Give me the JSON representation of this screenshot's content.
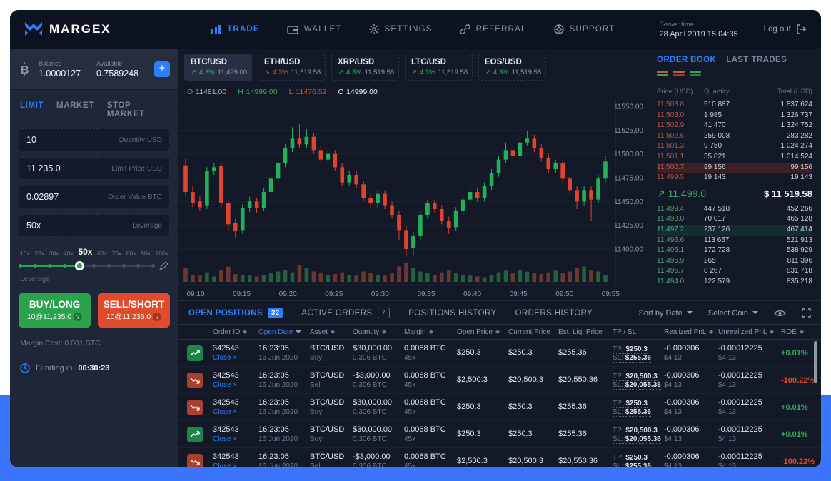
{
  "header": {
    "logo": "MARGEX",
    "nav": [
      {
        "label": "TRADE",
        "icon": "chart-bars-icon",
        "active": true
      },
      {
        "label": "WALLET",
        "icon": "wallet-icon",
        "active": false
      },
      {
        "label": "SETTINGS",
        "icon": "gear-icon",
        "active": false
      },
      {
        "label": "REFERRAL",
        "icon": "link-icon",
        "active": false
      },
      {
        "label": "SUPPORT",
        "icon": "lifebuoy-icon",
        "active": false
      }
    ],
    "server_time_label": "Server time:",
    "server_time_value": "28 April 2019 15:04:35",
    "logout_label": "Log out"
  },
  "sidebar": {
    "balance_label": "Balance",
    "balance_value": "1.0000127",
    "available_label": "Available",
    "available_value": "0.7589248",
    "order_tabs": [
      {
        "label": "LIMIT",
        "active": true
      },
      {
        "label": "MARKET",
        "active": false
      },
      {
        "label": "STOP MARKET",
        "active": false
      }
    ],
    "fields": [
      {
        "value": "10",
        "label": "Quantity USD"
      },
      {
        "value": "11 235.0",
        "label": "Limit Price USD"
      },
      {
        "value": "0.02897",
        "label": "Order Value BTC"
      },
      {
        "value": "50x",
        "label": "Leverage"
      }
    ],
    "leverage": {
      "marks": [
        "10x",
        "20x",
        "30x",
        "40x",
        "50x",
        "60x",
        "70x",
        "80x",
        "90x",
        "100x"
      ],
      "selected_index": 4,
      "label": "Leverage"
    },
    "buy": {
      "title": "BUY/LONG",
      "sub": "10@11,235.0",
      "hint": "?"
    },
    "sell": {
      "title": "SELL/SHORT",
      "sub": "10@11,235.0",
      "hint": "?"
    },
    "margin_cost": "Margin Cost: 0.001 BTC",
    "funding_label": "Funding in",
    "funding_value": "00:30:23"
  },
  "pairs": [
    {
      "name": "BTC/USD",
      "dir": "up",
      "change": "4.3%",
      "price": "11,499.00",
      "active": true
    },
    {
      "name": "ETH/USD",
      "dir": "down",
      "change": "4.3%",
      "price": "11,519.58",
      "active": false
    },
    {
      "name": "XRP/USD",
      "dir": "up",
      "change": "4.3%",
      "price": "11,519.58",
      "active": false
    },
    {
      "name": "LTC/USD",
      "dir": "up",
      "change": "4.3%",
      "price": "11,519.58",
      "active": false
    },
    {
      "name": "EOS/USD",
      "dir": "up",
      "change": "4.3%",
      "price": "11,519.58",
      "active": false
    }
  ],
  "ohlc": {
    "o": "11481.00",
    "h": "14999.00",
    "l": "11476.52",
    "c": "14999.00"
  },
  "chart_data": {
    "type": "candlestick",
    "y_ticks": [
      "11550.00",
      "11525.00",
      "11500.00",
      "11475.00",
      "11450.00",
      "11425.00",
      "11400.00"
    ],
    "y_range": [
      11550,
      11400
    ],
    "x_ticks": [
      "09:10",
      "09:15",
      "09:20",
      "09:25",
      "09:30",
      "09:35",
      "09:40",
      "09:45",
      "09:50",
      "09:55"
    ],
    "candles": [
      [
        11488,
        11496,
        11456,
        11460
      ],
      [
        11460,
        11466,
        11444,
        11448
      ],
      [
        11450,
        11456,
        11440,
        11444
      ],
      [
        11446,
        11486,
        11442,
        11482
      ],
      [
        11482,
        11491,
        11478,
        11486
      ],
      [
        11487,
        11491,
        11444,
        11448
      ],
      [
        11448,
        11452,
        11420,
        11426
      ],
      [
        11427,
        11432,
        11412,
        11419
      ],
      [
        11420,
        11447,
        11416,
        11443
      ],
      [
        11443,
        11455,
        11439,
        11450
      ],
      [
        11450,
        11454,
        11438,
        11443
      ],
      [
        11443,
        11464,
        11440,
        11460
      ],
      [
        11460,
        11478,
        11456,
        11474
      ],
      [
        11474,
        11494,
        11470,
        11490
      ],
      [
        11490,
        11510,
        11486,
        11506
      ],
      [
        11506,
        11528,
        11502,
        11516
      ],
      [
        11516,
        11531,
        11506,
        11510
      ],
      [
        11510,
        11526,
        11506,
        11518
      ],
      [
        11518,
        11522,
        11500,
        11504
      ],
      [
        11504,
        11508,
        11490,
        11494
      ],
      [
        11494,
        11504,
        11490,
        11500
      ],
      [
        11500,
        11504,
        11482,
        11486
      ],
      [
        11486,
        11490,
        11466,
        11470
      ],
      [
        11470,
        11482,
        11466,
        11478
      ],
      [
        11478,
        11482,
        11464,
        11468
      ],
      [
        11468,
        11472,
        11450,
        11454
      ],
      [
        11454,
        11458,
        11444,
        11448
      ],
      [
        11448,
        11462,
        11444,
        11458
      ],
      [
        11458,
        11462,
        11442,
        11446
      ],
      [
        11446,
        11450,
        11432,
        11436
      ],
      [
        11436,
        11440,
        11410,
        11420
      ],
      [
        11420,
        11424,
        11392,
        11400
      ],
      [
        11401,
        11418,
        11394,
        11414
      ],
      [
        11414,
        11440,
        11410,
        11436
      ],
      [
        11436,
        11452,
        11432,
        11448
      ],
      [
        11448,
        11452,
        11438,
        11442
      ],
      [
        11442,
        11446,
        11426,
        11430
      ],
      [
        11430,
        11434,
        11416,
        11422
      ],
      [
        11423,
        11444,
        11419,
        11440
      ],
      [
        11440,
        11456,
        11436,
        11452
      ],
      [
        11452,
        11464,
        11448,
        11460
      ],
      [
        11460,
        11464,
        11450,
        11454
      ],
      [
        11454,
        11470,
        11450,
        11466
      ],
      [
        11466,
        11484,
        11462,
        11480
      ],
      [
        11480,
        11498,
        11476,
        11494
      ],
      [
        11494,
        11512,
        11490,
        11504
      ],
      [
        11504,
        11508,
        11494,
        11498
      ],
      [
        11498,
        11520,
        11494,
        11512
      ],
      [
        11512,
        11524,
        11508,
        11516
      ],
      [
        11516,
        11520,
        11502,
        11506
      ],
      [
        11506,
        11510,
        11492,
        11496
      ],
      [
        11496,
        11500,
        11480,
        11484
      ],
      [
        11484,
        11494,
        11480,
        11490
      ],
      [
        11490,
        11494,
        11470,
        11474
      ],
      [
        11474,
        11478,
        11458,
        11462
      ],
      [
        11462,
        11466,
        11442,
        11450
      ],
      [
        11450,
        11466,
        11446,
        11462
      ],
      [
        11462,
        11466,
        11430,
        11452
      ],
      [
        11452,
        11478,
        11448,
        11474
      ],
      [
        11474,
        11498,
        11470,
        11492
      ]
    ],
    "volumes": [
      14,
      6,
      5,
      9,
      4,
      12,
      16,
      7,
      6,
      5,
      4,
      6,
      8,
      10,
      12,
      9,
      18,
      14,
      10,
      8,
      6,
      7,
      9,
      6,
      5,
      10,
      8,
      6,
      5,
      8,
      16,
      20,
      14,
      10,
      8,
      6,
      9,
      12,
      8,
      6,
      5,
      4,
      3,
      6,
      9,
      11,
      8,
      12,
      10,
      8,
      7,
      9,
      11,
      8,
      10,
      14,
      16,
      12,
      10,
      6
    ]
  },
  "orderbook": {
    "tabs": [
      {
        "label": "ORDER BOOK",
        "active": true
      },
      {
        "label": "LAST TRADES",
        "active": false
      }
    ],
    "columns": [
      "Price (USD)",
      "Quantity",
      "Total (USD)"
    ],
    "asks": [
      {
        "price": "11,503.8",
        "qty": "510 887",
        "total": "1 837 624",
        "hl": false
      },
      {
        "price": "11,503.0",
        "qty": "1 985",
        "total": "1 326 737",
        "hl": false
      },
      {
        "price": "11,502.9",
        "qty": "41 470",
        "total": "1 324 752",
        "hl": false
      },
      {
        "price": "11,502.6",
        "qty": "259 008",
        "total": "283 282",
        "hl": false
      },
      {
        "price": "11,501.3",
        "qty": "9 750",
        "total": "1 024 274",
        "hl": false
      },
      {
        "price": "11,501.1",
        "qty": "35 821",
        "total": "1 014 524",
        "hl": false
      },
      {
        "price": "11,500.7",
        "qty": "99 156",
        "total": "99 156",
        "hl": true
      },
      {
        "price": "11,499.5",
        "qty": "19 143",
        "total": "19 143",
        "hl": false
      }
    ],
    "mid": {
      "dir": "up",
      "price": "11,499.0",
      "total": "$ 11 519.58"
    },
    "bids": [
      {
        "price": "11,499.4",
        "qty": "447 518",
        "total": "452 266",
        "hl": false
      },
      {
        "price": "11,498.0",
        "qty": "70 017",
        "total": "465 128",
        "hl": false
      },
      {
        "price": "11,497.2",
        "qty": "237 126",
        "total": "467 414",
        "hl": true
      },
      {
        "price": "11,496.6",
        "qty": "113 657",
        "total": "521 913",
        "hl": false
      },
      {
        "price": "11,496.1",
        "qty": "172 728",
        "total": "538 929",
        "hl": false
      },
      {
        "price": "11,495.9",
        "qty": "265",
        "total": "811 396",
        "hl": false
      },
      {
        "price": "11,495.7",
        "qty": "8 267",
        "total": "831 718",
        "hl": false
      },
      {
        "price": "11,494.0",
        "qty": "122 579",
        "total": "835 218",
        "hl": false
      }
    ]
  },
  "positions": {
    "tabs": [
      {
        "label": "OPEN POSITIONS",
        "badge": "32",
        "badge_style": "solid",
        "active": true
      },
      {
        "label": "ACTIVE ORDERS",
        "badge": "7",
        "badge_style": "outline",
        "active": false
      },
      {
        "label": "POSITIONS HISTORY",
        "badge": "",
        "badge_style": "",
        "active": false
      },
      {
        "label": "ORDERS HISTORY",
        "badge": "",
        "badge_style": "",
        "active": false
      }
    ],
    "sort_by": "Sort by Date",
    "select_coin": "Select Coin",
    "columns": [
      {
        "label": "Order ID",
        "sort": true
      },
      {
        "label": "Open Date",
        "sort": "down",
        "sorted": true
      },
      {
        "label": "Asset",
        "sort": true
      },
      {
        "label": "Quantity",
        "sort": true
      },
      {
        "label": "Margin",
        "sort": true
      },
      {
        "label": "Open Price",
        "sort": true
      },
      {
        "label": "Current Price",
        "sort": false
      },
      {
        "label": "Est. Liq. Price",
        "sort": false
      },
      {
        "label": "TP / SL",
        "sort": false
      },
      {
        "label": "Realized PnL",
        "sort": true
      },
      {
        "label": "Unrealized PnL",
        "sort": true
      },
      {
        "label": "ROE",
        "sort": true
      }
    ],
    "close_label": "Close ×",
    "rows": [
      {
        "trend": "up",
        "order_id": "342543",
        "time": "16:23:05",
        "date": "16 Jun 2020",
        "asset": "BTC/USD",
        "side": "Buy",
        "qty": "$30,000.00",
        "qty_dir": "up",
        "qty_btc": "0.306 BTC",
        "margin": "0.0068 BTC",
        "lev": "45x",
        "open": "$250.3",
        "current": "$250.3",
        "liq": "$255.36",
        "tp": "$250.3",
        "sl": "$255.36",
        "rpnl": "-0.000306",
        "rpnl_usd": "$4.13",
        "upnl": "-0.00012225",
        "upnl_usd": "$4.13",
        "roe": "+0.01%",
        "roe_dir": "up"
      },
      {
        "trend": "down",
        "order_id": "342543",
        "time": "16:23:05",
        "date": "16 Jun 2020",
        "asset": "BTC/USD",
        "side": "Sell",
        "qty": "-$3,000.00",
        "qty_dir": "down",
        "qty_btc": "0.306 BTC",
        "margin": "0.0068 BTC",
        "lev": "45x",
        "open": "$2,500.3",
        "current": "$20,500.3",
        "liq": "$20,550.36",
        "tp": "$20,500.3",
        "sl": "$20,055.36",
        "rpnl": "-0.000306",
        "rpnl_usd": "$4.13",
        "upnl": "-0.00012225",
        "upnl_usd": "$4.13",
        "roe": "-100.22%",
        "roe_dir": "down"
      },
      {
        "trend": "down",
        "order_id": "342543",
        "time": "16:23:05",
        "date": "16 Jun 2020",
        "asset": "BTC/USD",
        "side": "Buy",
        "qty": "$30,000.00",
        "qty_dir": "up",
        "qty_btc": "0.306 BTC",
        "margin": "0.0068 BTC",
        "lev": "45x",
        "open": "$250.3",
        "current": "$250.3",
        "liq": "$255.36",
        "tp": "$250.3",
        "sl": "$255.36",
        "rpnl": "-0.000306",
        "rpnl_usd": "$4.13",
        "upnl": "-0.00012225",
        "upnl_usd": "$4.13",
        "roe": "+0.01%",
        "roe_dir": "up"
      },
      {
        "trend": "up",
        "order_id": "342543",
        "time": "16:23:05",
        "date": "16 Jun 2020",
        "asset": "BTC/USD",
        "side": "Buy",
        "qty": "$30,000.00",
        "qty_dir": "up",
        "qty_btc": "0.306 BTC",
        "margin": "0.0068 BTC",
        "lev": "45x",
        "open": "$250.3",
        "current": "$250.3",
        "liq": "$255.36",
        "tp": "$20,500.3",
        "sl": "$20,055.36",
        "rpnl": "-0.000306",
        "rpnl_usd": "$4.13",
        "upnl": "-0.00012225",
        "upnl_usd": "$4.13",
        "roe": "+0.01%",
        "roe_dir": "up"
      },
      {
        "trend": "down",
        "order_id": "342543",
        "time": "16:23:05",
        "date": "16 Jun 2020",
        "asset": "BTC/USD",
        "side": "Sell",
        "qty": "-$3,000.00",
        "qty_dir": "down",
        "qty_btc": "0.306 BTC",
        "margin": "0.0068 BTC",
        "lev": "45x",
        "open": "$2,500.3",
        "current": "$20,500.3",
        "liq": "$20,550.36",
        "tp": "$250.3",
        "sl": "$255.36",
        "rpnl": "-0.000306",
        "rpnl_usd": "$4.13",
        "upnl": "-0.00012225",
        "upnl_usd": "$4.13",
        "roe": "-100.22%",
        "roe_dir": "down"
      }
    ]
  },
  "colors": {
    "accent_blue": "#2e7ef7",
    "green": "#27a74f",
    "candle_green": "#22b158",
    "candle_red": "#e2432e",
    "red": "#e14b2d",
    "page_blue": "#3974fa",
    "ask_red": "#b8524a",
    "bid_green": "#51a371"
  }
}
